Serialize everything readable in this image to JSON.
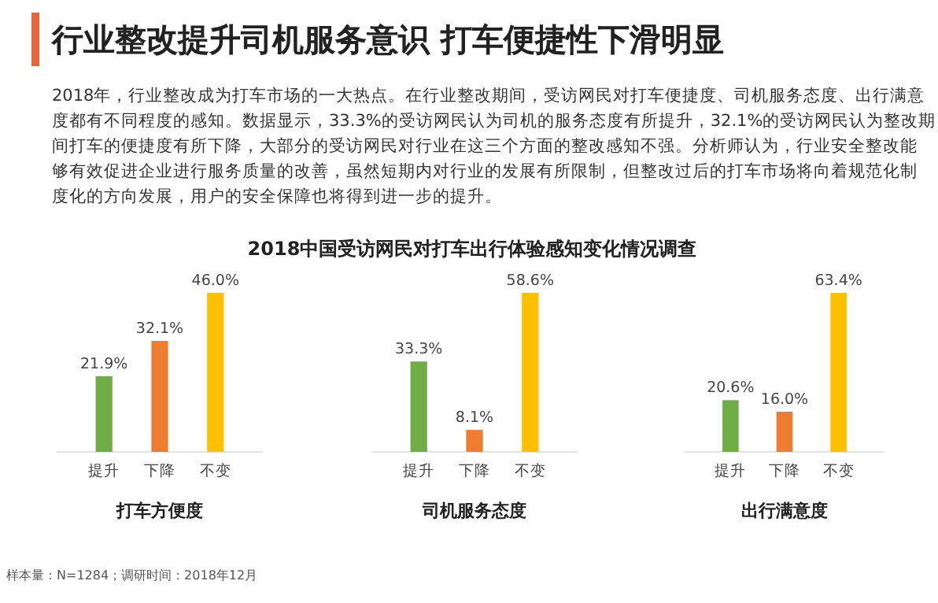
{
  "chart_data": [
    {
      "type": "bar",
      "title": "行业整改提升司机服务意识  打车便捷性下滑明显",
      "subtitle": "2018年，行业整改成为打车市场的一大热点。在行业整改期间，受访网民对打车便捷度、司机服务态度、出行满意度都有不同程度的感知。数据显示，33.3%的受访网民认为司机的服务态度有所提升，32.1%的受访网民认为整改期间打车的便捷度有所下降，大部分的受访网民对行业在这三个方面的整改感知不强。分析师认为，行业安全整改能够有效促进企业进行服务质量的改善，虽然短期内对行业的发展有所限制，但整改过后的打车市场将向着规范化制度化的方向发展，用户的安全保障也将得到进一步的提升。",
      "annotations": [
        "2018中国受访网民对打车出行体验感知变化情况调查",
        "样本量：N=1284；调研时间：2018年12月"
      ],
      "xlabel": "打车方便度",
      "categories": [
        "提升",
        "下降",
        "不变"
      ],
      "values": [
        21.9,
        32.1,
        46.0
      ],
      "value_labels": [
        "21.9%",
        "32.1%",
        "46.0%"
      ],
      "colors": [
        "#70ad47",
        "#ed7d31",
        "#ffc000"
      ]
    },
    {
      "type": "bar",
      "xlabel": "司机服务态度",
      "categories": [
        "提升",
        "下降",
        "不变"
      ],
      "values": [
        33.3,
        8.1,
        58.6
      ],
      "value_labels": [
        "33.3%",
        "8.1%",
        "58.6%"
      ],
      "colors": [
        "#70ad47",
        "#ed7d31",
        "#ffc000"
      ]
    },
    {
      "type": "bar",
      "xlabel": "出行满意度",
      "categories": [
        "提升",
        "下降",
        "不变"
      ],
      "values": [
        20.6,
        16.0,
        63.4
      ],
      "value_labels": [
        "20.6%",
        "16.0%",
        "63.4%"
      ],
      "colors": [
        "#70ad47",
        "#ed7d31",
        "#ffc000"
      ]
    }
  ]
}
